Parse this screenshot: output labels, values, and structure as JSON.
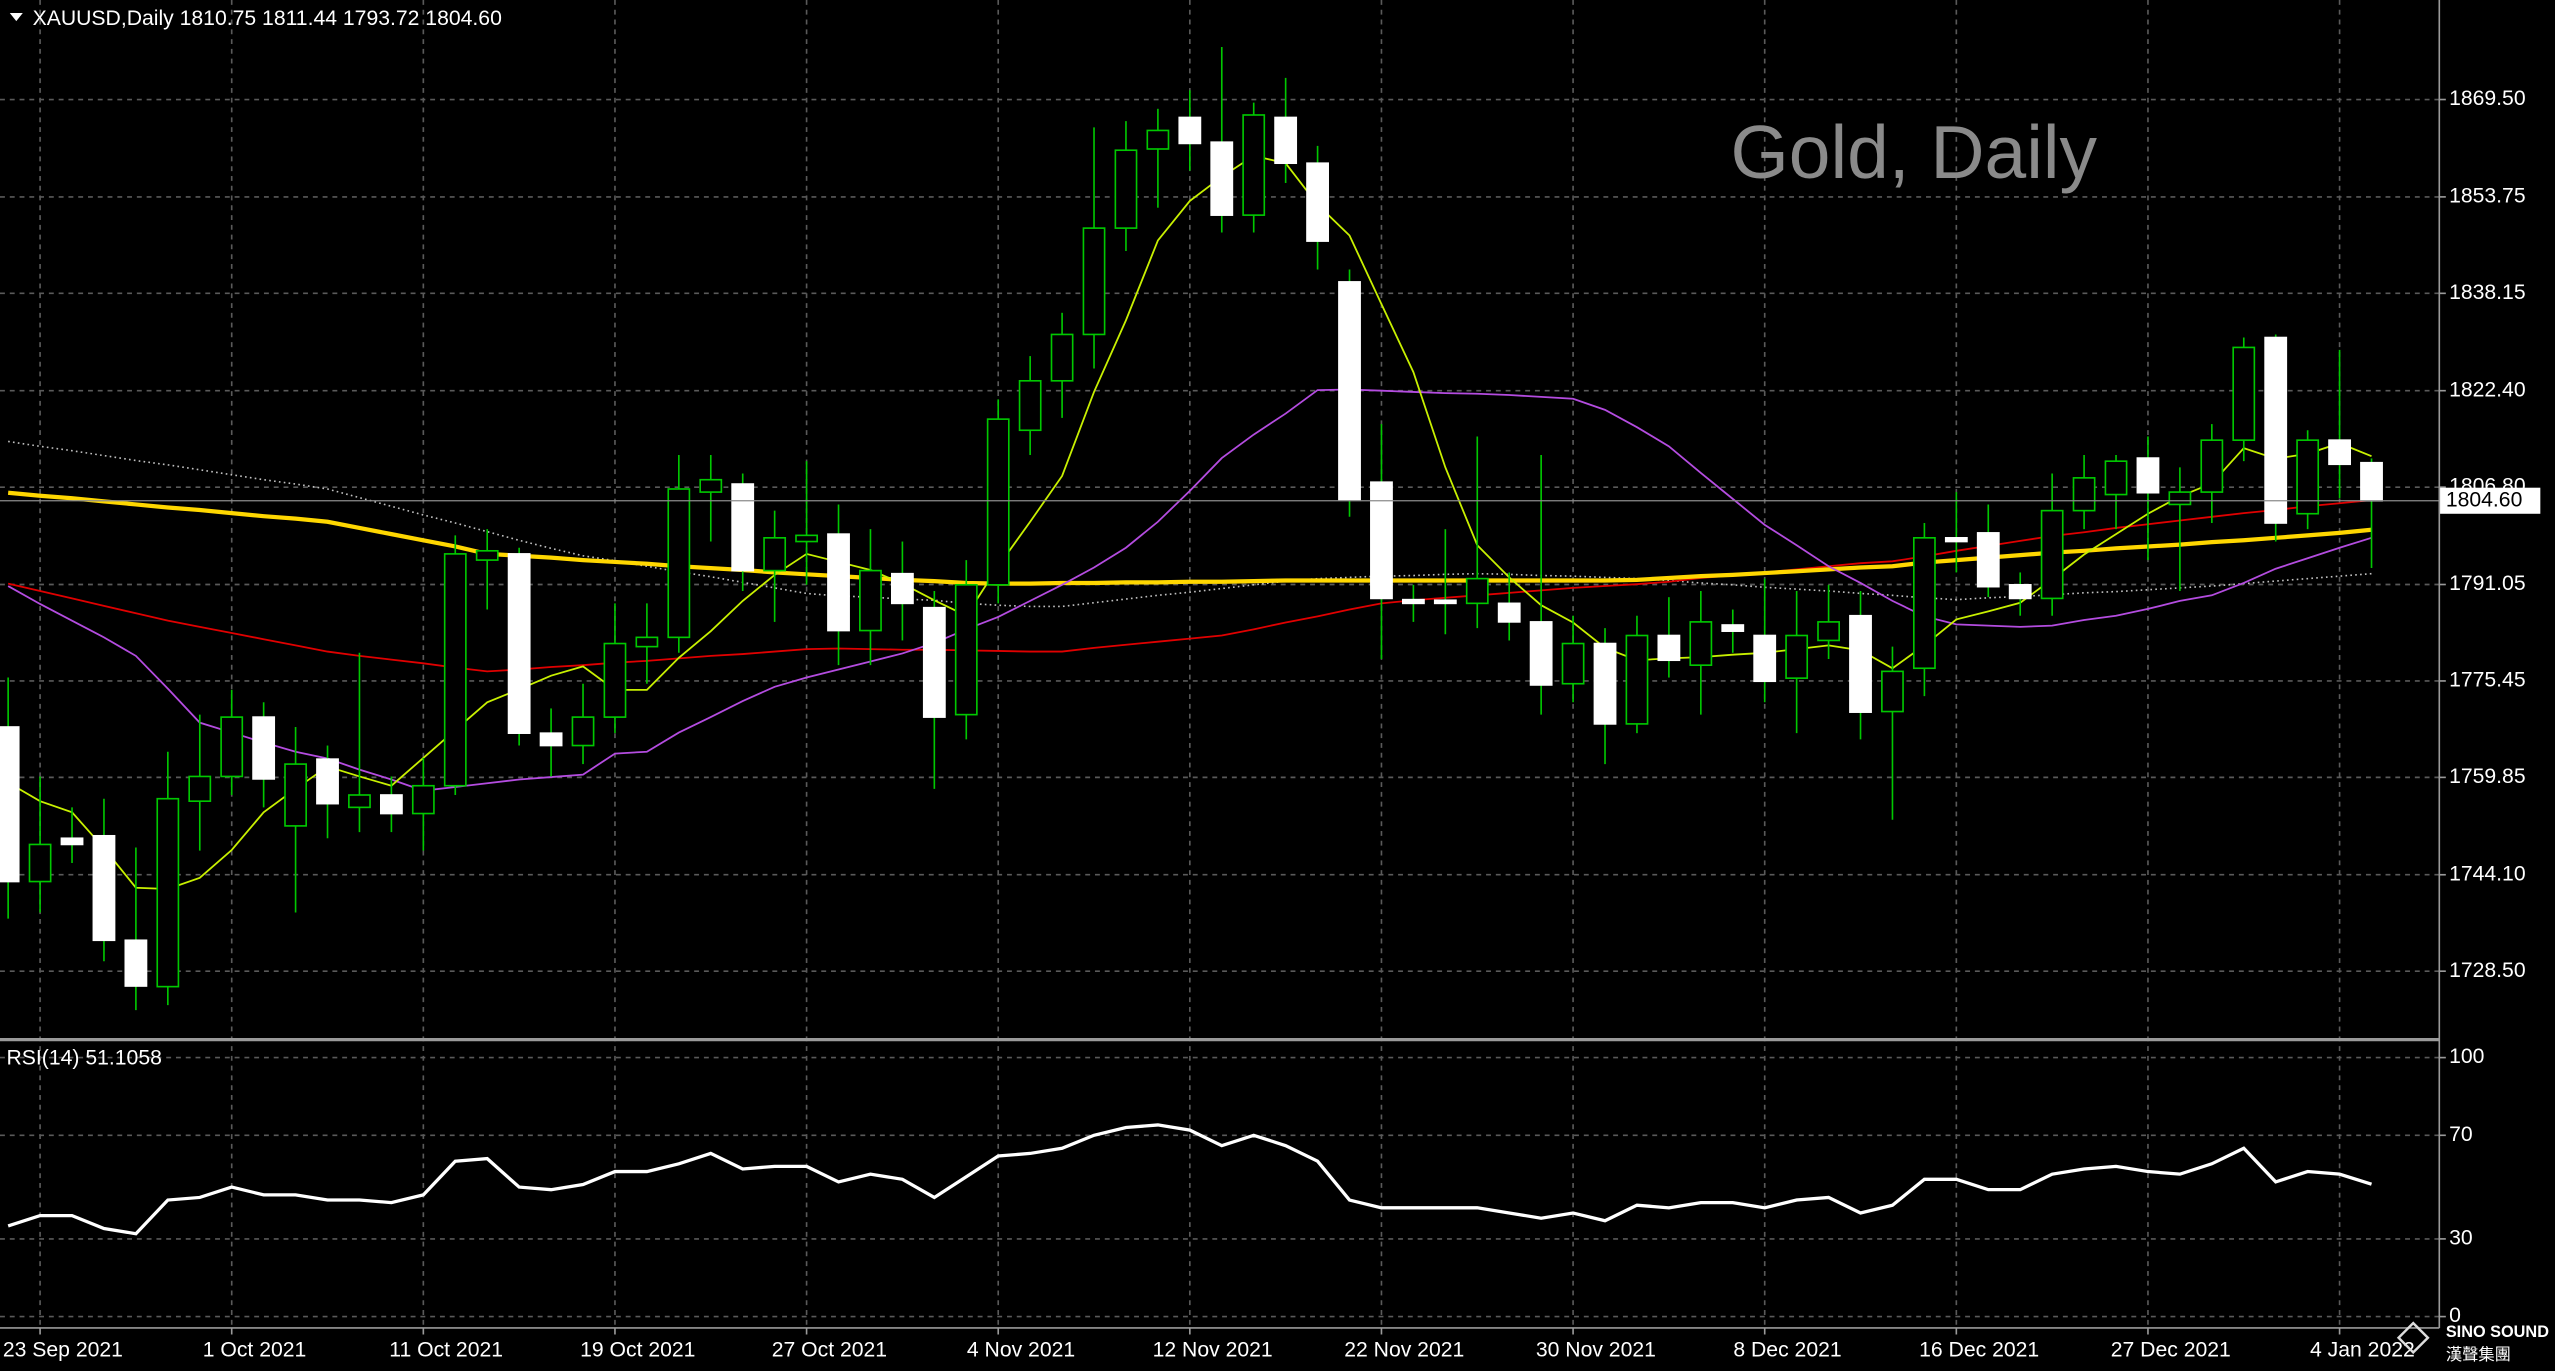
{
  "chart_data": [
    {
      "type": "candlestick",
      "title": "XAUUSD,Daily  1810.75 1811.44 1793.72 1804.60",
      "watermark": "Gold, Daily",
      "categories": [
        null,
        "23 Sep 2021",
        null,
        null,
        null,
        null,
        null,
        "1 Oct 2021",
        null,
        null,
        null,
        null,
        null,
        "11 Oct 2021",
        null,
        null,
        null,
        null,
        null,
        "19 Oct 2021",
        null,
        null,
        null,
        null,
        null,
        "27 Oct 2021",
        null,
        null,
        null,
        null,
        null,
        "4 Nov 2021",
        null,
        null,
        null,
        null,
        null,
        "12 Nov 2021",
        null,
        null,
        null,
        null,
        null,
        "22 Nov 2021",
        null,
        null,
        null,
        null,
        null,
        "30 Nov 2021",
        null,
        null,
        null,
        null,
        null,
        "8 Dec 2021",
        null,
        null,
        null,
        null,
        null,
        "16 Dec 2021",
        null,
        null,
        null,
        null,
        null,
        "27 Dec 2021",
        null,
        null,
        null,
        null,
        null,
        "4 Jan 2022",
        null
      ],
      "open": [
        1768,
        1743,
        1750,
        1750.4,
        1733.5,
        1726,
        1756,
        1760,
        1769.6,
        1752,
        1762.8,
        1755,
        1757,
        1754,
        1758.5,
        1795,
        1796,
        1767,
        1765,
        1769.6,
        1781,
        1782.5,
        1806,
        1807.3,
        1793.3,
        1798,
        1799.2,
        1783.6,
        1792.8,
        1787.3,
        1770,
        1791,
        1816,
        1824,
        1831.5,
        1848.7,
        1861.5,
        1866.6,
        1862.6,
        1850.8,
        1866.6,
        1859.2,
        1840,
        1807.6,
        1788.6,
        1788.5,
        1788,
        1788,
        1785,
        1775,
        1781.5,
        1768.5,
        1782.8,
        1778,
        1784.5,
        1782.8,
        1775.9,
        1782,
        1786,
        1770.5,
        1777.5,
        1798.6,
        1799.4,
        1791,
        1788.8,
        1803,
        1805.6,
        1811.5,
        1804,
        1806,
        1814.4,
        1831,
        1802.5,
        1814.4,
        1810.75
      ],
      "high": [
        1776,
        1760,
        1755,
        1756.4,
        1748.5,
        1764,
        1770,
        1774,
        1772,
        1768,
        1765,
        1780,
        1760,
        1763,
        1799,
        1800,
        1797,
        1771,
        1775,
        1788,
        1788,
        1812,
        1812,
        1809,
        1803,
        1811,
        1804,
        1800,
        1798,
        1790,
        1795,
        1821,
        1828,
        1835,
        1865,
        1866,
        1868,
        1871,
        1878,
        1869,
        1873,
        1862,
        1842,
        1817,
        1791,
        1800,
        1815,
        1793,
        1812,
        1786,
        1784,
        1786,
        1789,
        1790,
        1787,
        1792,
        1790,
        1791,
        1790,
        1781,
        1801,
        1806,
        1804,
        1793,
        1809,
        1812,
        1812,
        1815,
        1810,
        1817,
        1831,
        1831.5,
        1816,
        1829,
        1811.44
      ],
      "low": [
        1737,
        1738,
        1746,
        1730.1,
        1722.2,
        1723,
        1748,
        1757,
        1755,
        1738,
        1750,
        1751,
        1751,
        1748,
        1757,
        1787,
        1765,
        1760,
        1762,
        1767,
        1775,
        1780,
        1798,
        1790,
        1785,
        1791,
        1778,
        1778,
        1782,
        1758,
        1766,
        1788,
        1812,
        1818,
        1826,
        1845,
        1852,
        1858,
        1848,
        1848,
        1856,
        1842,
        1802,
        1779,
        1785,
        1783,
        1784,
        1782,
        1770,
        1772,
        1762,
        1767,
        1776,
        1770,
        1780,
        1772,
        1767,
        1779,
        1766,
        1753,
        1773,
        1793,
        1789,
        1786,
        1786,
        1800,
        1800,
        1795,
        1790,
        1801,
        1811,
        1798,
        1800,
        1805,
        1793.72
      ],
      "close": [
        1743,
        1749,
        1749,
        1733.5,
        1726.1,
        1756.4,
        1760,
        1769.6,
        1759.6,
        1762,
        1755.6,
        1757,
        1754,
        1758.5,
        1796,
        1796.5,
        1767,
        1765,
        1769.6,
        1781.5,
        1782.5,
        1806.5,
        1808,
        1793.3,
        1798.6,
        1799,
        1783.6,
        1793.3,
        1788,
        1769.6,
        1791,
        1817.8,
        1824,
        1831.5,
        1848.7,
        1861.3,
        1864.5,
        1862.4,
        1850.8,
        1867,
        1859.2,
        1846.6,
        1804.7,
        1788.8,
        1788,
        1788,
        1792,
        1785,
        1774.8,
        1781.5,
        1768.5,
        1782.8,
        1778.8,
        1785,
        1783.5,
        1775.4,
        1782.8,
        1785,
        1770.4,
        1777,
        1798.6,
        1798,
        1790.7,
        1788.8,
        1803,
        1808.3,
        1811,
        1805.9,
        1806,
        1814.4,
        1829.4,
        1801,
        1814.4,
        1810.5,
        1804.6
      ],
      "up_color": "#00c800",
      "down_color": "#ffffff",
      "wick_color": "#00c800",
      "lines": [
        {
          "color": "#c0c0c0",
          "style": "dotted",
          "values": [
            1814.2,
            1813.4,
            1812.7,
            1811.9,
            1811.1,
            1810.4,
            1809.6,
            1808.8,
            1808,
            1807.3,
            1806.5,
            1805.1,
            1803.7,
            1802.3,
            1801,
            1799.6,
            1798.2,
            1796.9,
            1795.7,
            1794.9,
            1794,
            1793.1,
            1792.3,
            1791.4,
            1790.5,
            1789.6,
            1789.2,
            1789,
            1788.7,
            1788.5,
            1788,
            1787.7,
            1787.5,
            1787.5,
            1788.1,
            1788.7,
            1789.3,
            1789.8,
            1790.4,
            1791,
            1791.6,
            1792,
            1792.2,
            1792.4,
            1792.5,
            1792.7,
            1792.8,
            1792.7,
            1792.5,
            1792.4,
            1792.2,
            1792,
            1791.7,
            1791.3,
            1791,
            1790.6,
            1790.3,
            1790,
            1789.6,
            1789.3,
            1788.9,
            1788.6,
            1788.9,
            1789.1,
            1789.4,
            1789.7,
            1789.9,
            1790.2,
            1790.5,
            1790.8,
            1791.2,
            1791.6,
            1792,
            1792.4,
            1792.8
          ]
        },
        {
          "color": "#e00000",
          "style": "thin",
          "values": [
            1791.2,
            1790,
            1788.8,
            1787.6,
            1786.4,
            1785.2,
            1784.2,
            1783.2,
            1782.2,
            1781.2,
            1780.2,
            1779.5,
            1778.9,
            1778.3,
            1777.6,
            1777,
            1777.3,
            1777.7,
            1778,
            1778.4,
            1778.7,
            1779.1,
            1779.5,
            1779.8,
            1780.2,
            1780.6,
            1780.7,
            1780.6,
            1780.5,
            1780.5,
            1780.4,
            1780.3,
            1780.2,
            1780.2,
            1780.8,
            1781.3,
            1781.8,
            1782.3,
            1782.8,
            1783.8,
            1784.9,
            1785.9,
            1787,
            1788,
            1788.5,
            1788.9,
            1789.3,
            1789.7,
            1790.1,
            1790.5,
            1790.8,
            1791.1,
            1791.5,
            1792.1,
            1792.5,
            1793,
            1793.5,
            1794,
            1794.5,
            1794.8,
            1795.6,
            1796.5,
            1797.3,
            1798.1,
            1798.9,
            1799.5,
            1800.2,
            1800.8,
            1801.4,
            1802,
            1802.6,
            1803.1,
            1803.7,
            1804.2,
            1804.7
          ]
        },
        {
          "color": "#ffd700",
          "style": "thick",
          "values": [
            1805.9,
            1805.4,
            1805,
            1804.5,
            1804,
            1803.5,
            1803.1,
            1802.6,
            1802.1,
            1801.7,
            1801.2,
            1800.2,
            1799.2,
            1798.2,
            1797.2,
            1796,
            1795.7,
            1795.4,
            1795,
            1794.7,
            1794.4,
            1794,
            1793.7,
            1793.4,
            1793,
            1792.7,
            1792.4,
            1792.1,
            1791.8,
            1791.6,
            1791.3,
            1791.2,
            1791.2,
            1791.3,
            1791.3,
            1791.4,
            1791.4,
            1791.5,
            1791.5,
            1791.6,
            1791.7,
            1791.7,
            1791.7,
            1791.7,
            1791.7,
            1791.7,
            1791.7,
            1791.7,
            1791.7,
            1791.7,
            1791.7,
            1791.8,
            1792.1,
            1792.4,
            1792.6,
            1792.9,
            1793.2,
            1793.5,
            1793.8,
            1794,
            1794.6,
            1795,
            1795.4,
            1795.8,
            1796.2,
            1796.5,
            1796.9,
            1797.2,
            1797.5,
            1797.9,
            1798.2,
            1798.6,
            1799,
            1799.4,
            1799.9
          ]
        },
        {
          "color": "#b44ce0",
          "style": "thin",
          "values": [
            1790.8,
            1787.9,
            1785.2,
            1782.5,
            1779.5,
            1774.2,
            1768.7,
            1767.1,
            1765.5,
            1764,
            1762.9,
            1761.1,
            1759.5,
            1757.7,
            1758.3,
            1758.9,
            1759.5,
            1759.9,
            1760.3,
            1763.7,
            1764,
            1767.1,
            1769.6,
            1772.2,
            1774.5,
            1776,
            1777.3,
            1778.6,
            1779.9,
            1781.6,
            1783.8,
            1785.8,
            1788.4,
            1791,
            1793.8,
            1797,
            1801.2,
            1806.2,
            1811.5,
            1815.3,
            1818.7,
            1822.5,
            1822.6,
            1822.4,
            1822.2,
            1822,
            1821.9,
            1821.7,
            1821.4,
            1821.1,
            1819.3,
            1816.5,
            1813.4,
            1809.1,
            1804.9,
            1800.7,
            1797.4,
            1794,
            1791.3,
            1788.4,
            1785.9,
            1784.6,
            1784.4,
            1784.2,
            1784.4,
            1785.3,
            1786,
            1787.1,
            1788.4,
            1789.3,
            1791.3,
            1793.6,
            1795.3,
            1797,
            1798.6
          ]
        },
        {
          "color": "#c8f000",
          "style": "thin",
          "values": [
            1759,
            1756,
            1754.2,
            1748.4,
            1742,
            1741.8,
            1743.6,
            1748.1,
            1754.2,
            1758,
            1761.6,
            1760,
            1758.5,
            1763,
            1767.5,
            1772,
            1774.1,
            1776.3,
            1777.8,
            1774,
            1774,
            1779.2,
            1783.5,
            1788.4,
            1792.6,
            1796,
            1794.7,
            1793.4,
            1791.2,
            1788.5,
            1786,
            1794,
            1801.2,
            1808.6,
            1822.2,
            1833.8,
            1846.7,
            1853.1,
            1857,
            1860.4,
            1859.2,
            1852.5,
            1847.5,
            1836.4,
            1825.4,
            1810,
            1797.4,
            1792.2,
            1787.7,
            1784.9,
            1780.8,
            1778.8,
            1779.1,
            1779.3,
            1779.7,
            1780,
            1780.6,
            1781.2,
            1780.4,
            1777.5,
            1781.2,
            1785.4,
            1786.7,
            1788.1,
            1791.9,
            1795.9,
            1799.2,
            1802.5,
            1805.3,
            1807.4,
            1813.1,
            1811.4,
            1812.2,
            1813.9,
            1811.8
          ]
        }
      ],
      "ylim": [
        1717.7,
        1885.6
      ],
      "yticks": [
        {
          "value": 1869.5,
          "label": "1869.50"
        },
        1853.75,
        1838.15,
        {
          "value": 1822.4,
          "label": "1822.40"
        },
        {
          "value": 1806.8,
          "label": "1806.80"
        },
        1791.05,
        1775.45,
        1759.85,
        {
          "value": 1744.1,
          "label": "1744.10"
        },
        {
          "value": 1728.5,
          "label": "1728.50"
        }
      ],
      "grid": true,
      "last_price": {
        "value": 1804.6,
        "label": "1804.60"
      }
    },
    {
      "type": "line",
      "title": "RSI(14) 51.1058",
      "color": "#ffffff",
      "values": [
        35,
        39,
        39,
        34,
        32,
        45,
        46,
        50,
        47,
        47,
        45,
        45,
        44,
        47,
        60,
        61,
        50,
        49,
        51,
        56,
        56,
        59,
        63,
        57,
        58,
        58,
        52,
        55,
        53,
        46,
        54,
        62,
        63,
        65,
        70,
        73,
        74,
        72,
        66,
        70,
        66,
        60,
        45,
        42,
        42,
        42,
        42,
        40,
        38,
        40,
        37,
        43,
        42,
        44,
        44,
        42,
        45,
        46,
        40,
        43,
        53,
        53,
        49,
        49,
        55,
        57,
        58,
        56,
        55,
        59,
        65,
        52,
        56,
        55,
        51.1058
      ],
      "ylim": [
        -4.4,
        105.7
      ],
      "yticks": [
        100,
        70,
        30,
        0
      ],
      "grid": true
    }
  ],
  "logo": {
    "line1": "SINO SOUND",
    "line2": "漢聲集團"
  }
}
